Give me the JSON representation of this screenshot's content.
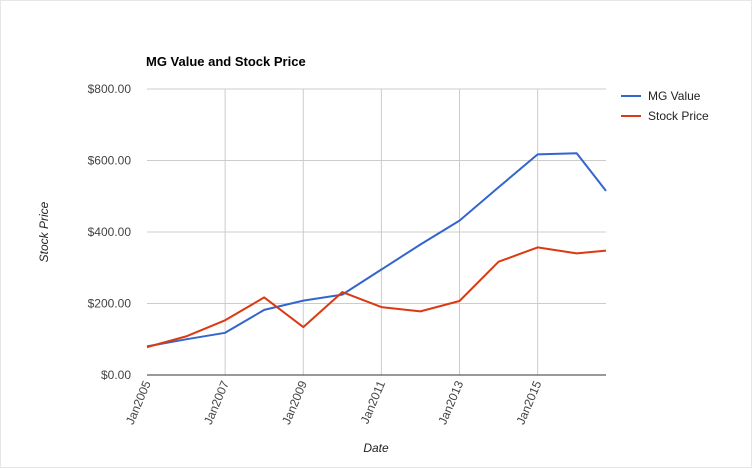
{
  "chart_data": {
    "type": "line",
    "title": "MG Value and Stock Price",
    "xlabel": "Date",
    "ylabel": "Stock Price",
    "x": [
      2005,
      2006,
      2007,
      2008,
      2009,
      2010,
      2011,
      2012,
      2013,
      2014,
      2015,
      2016,
      2016.75
    ],
    "x_ticks": [
      "Jan2005",
      "Jan2007",
      "Jan2009",
      "Jan2011",
      "Jan2013",
      "Jan2015"
    ],
    "y_ticks": [
      "$0.00",
      "$200.00",
      "$400.00",
      "$600.00",
      "$800.00"
    ],
    "xlim": [
      2005,
      2016.75
    ],
    "ylim": [
      0,
      800
    ],
    "grid": true,
    "legend_position": "right",
    "series": [
      {
        "name": "MG Value",
        "color": "#3366cc",
        "values": [
          80,
          100,
          118,
          182,
          208,
          225,
          295,
          365,
          432,
          525,
          617,
          620,
          515
        ]
      },
      {
        "name": "Stock Price",
        "color": "#dc3912",
        "values": [
          78,
          108,
          153,
          217,
          134,
          232,
          190,
          178,
          207,
          317,
          357,
          340,
          348
        ]
      }
    ]
  }
}
